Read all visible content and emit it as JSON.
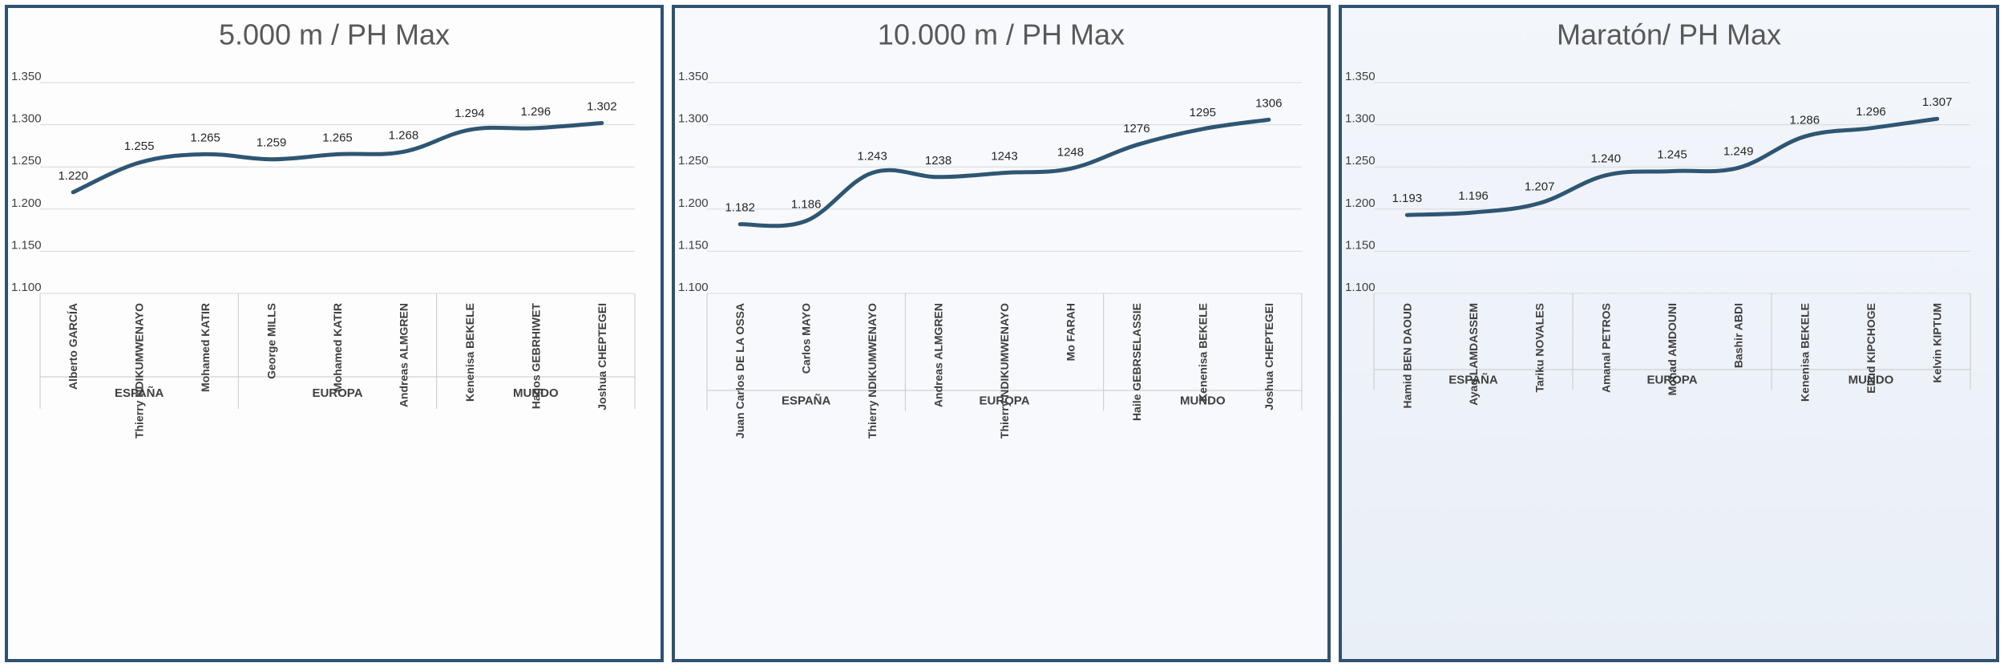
{
  "chart_data": [
    {
      "type": "line",
      "title": "5.000 m / PH Max",
      "ylim": [
        1100,
        1350
      ],
      "yticks": [
        1100,
        1150,
        1200,
        1250,
        1300,
        1350
      ],
      "ytick_labels": [
        "1.100",
        "1.150",
        "1.200",
        "1.250",
        "1.300",
        "1.350"
      ],
      "categories": [
        "Alberto GARCÍA",
        "Thierry NDIKUMWENAYO",
        "Mohamed KATIR",
        "George MILLS",
        "Mohamed KATIR",
        "Andreas ALMGREN",
        "Kenenisa BEKELE",
        "Hagos GEBRHIWET",
        "Joshua CHEPTEGEI"
      ],
      "groups": [
        {
          "name": "ESPAÑA",
          "count": 3
        },
        {
          "name": "EUROPA",
          "count": 3
        },
        {
          "name": "MUNDO",
          "count": 3
        }
      ],
      "values": [
        1220,
        1255,
        1265,
        1259,
        1265,
        1268,
        1294,
        1296,
        1302
      ],
      "data_labels": [
        "1.220",
        "1.255",
        "1.265",
        "1.259",
        "1.265",
        "1.268",
        "1.294",
        "1.296",
        "1.302"
      ],
      "line_color": "#2e5673"
    },
    {
      "type": "line",
      "title": "10.000 m / PH Max",
      "ylim": [
        1100,
        1350
      ],
      "yticks": [
        1100,
        1150,
        1200,
        1250,
        1300,
        1350
      ],
      "ytick_labels": [
        "1.100",
        "1.150",
        "1.200",
        "1.250",
        "1.300",
        "1.350"
      ],
      "categories": [
        "Juan Carlos DE LA OSSA",
        "Carlos MAYO",
        "Thierry NDIKUMWENAYO",
        "Andreas ALMGREN",
        "Thierry NDIKUMWENAYO",
        "Mo FARAH",
        "Haile GEBRSELASSIE",
        "Kenenisa BEKELE",
        "Joshua CHEPTEGEI"
      ],
      "groups": [
        {
          "name": "ESPAÑA",
          "count": 3
        },
        {
          "name": "EUROPA",
          "count": 3
        },
        {
          "name": "MUNDO",
          "count": 3
        }
      ],
      "values": [
        1182,
        1186,
        1243,
        1238,
        1243,
        1248,
        1276,
        1295,
        1306
      ],
      "data_labels": [
        "1.182",
        "1.186",
        "1.243",
        "1238",
        "1243",
        "1248",
        "1276",
        "1295",
        "1306"
      ],
      "line_color": "#2e5673"
    },
    {
      "type": "line",
      "title": "Maratón/ PH Max",
      "ylim": [
        1100,
        1350
      ],
      "yticks": [
        1100,
        1150,
        1200,
        1250,
        1300,
        1350
      ],
      "ytick_labels": [
        "1.100",
        "1.150",
        "1.200",
        "1.250",
        "1.300",
        "1.350"
      ],
      "categories": [
        "Hamid BEN DAOUD",
        "Ayad LAMDASSEM",
        "Tariku NOVALES",
        "Amanal PETROS",
        "Mohad AMDOUNI",
        "Bashir ABDI",
        "Kenenisa BEKELE",
        "Eliud KIPCHOGE",
        "Kelvin KIPTUM"
      ],
      "groups": [
        {
          "name": "ESPAÑA",
          "count": 3
        },
        {
          "name": "EUROPA",
          "count": 3
        },
        {
          "name": "MUNDO",
          "count": 3
        }
      ],
      "values": [
        1193,
        1196,
        1207,
        1240,
        1245,
        1249,
        1286,
        1296,
        1307
      ],
      "data_labels": [
        "1.193",
        "1.196",
        "1.207",
        "1.240",
        "1.245",
        "1.249",
        "1.286",
        "1.296",
        "1.307"
      ],
      "line_color": "#2e5673"
    }
  ]
}
